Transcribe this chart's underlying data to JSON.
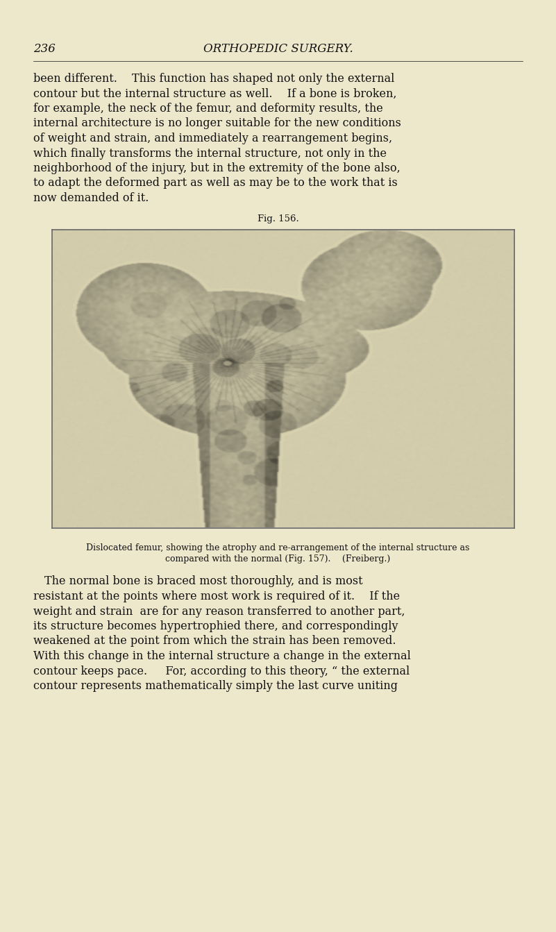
{
  "background_color": "#ede8cc",
  "page_width": 8.01,
  "page_height": 13.43,
  "dpi": 100,
  "header_number": "236",
  "header_title": "ORTHOPEDIC SURGERY.",
  "header_fontsize": 12,
  "para1_lines": [
    "been different.  This function has shaped not only the external",
    "contour but the internal structure as well.  If a bone is broken,",
    "for example, the neck of the femur, and deformity results, the",
    "internal architecture is no longer suitable for the new conditions",
    "of weight and strain, and immediately a rearrangement begins,",
    "which finally transforms the internal structure, not only in the",
    "neighborhood of the injury, but in the extremity of the bone also,",
    "to adapt the deformed part as well as may be to the work that is",
    "now demanded of it."
  ],
  "para1_fontsize": 11.5,
  "fig_label": "Fig. 156.",
  "fig_label_fontsize": 9.5,
  "caption_line1": "Dislocated femur, showing the atrophy and re-arrangement of the internal structure as",
  "caption_line2": "compared with the normal (Fig. 157).  (Freiberg.)",
  "caption_fontsize": 9.0,
  "para2_lines": [
    " The normal bone is braced most thoroughly, and is most",
    "resistant at the points where most work is required of it.  If the",
    "weight and strain  are for any reason transferred to another part,",
    "its structure becomes hypertrophied there, and correspondingly",
    "weakened at the point from which the strain has been removed.",
    "With this change in the internal structure a change in the external",
    "contour keeps pace.   For, according to this theory, “ the external",
    "contour represents mathematically simply the last curve uniting"
  ],
  "para2_fontsize": 11.5,
  "text_color": "#111111",
  "image_bg_color": "#e8e0c0",
  "image_border_color": "#666666"
}
